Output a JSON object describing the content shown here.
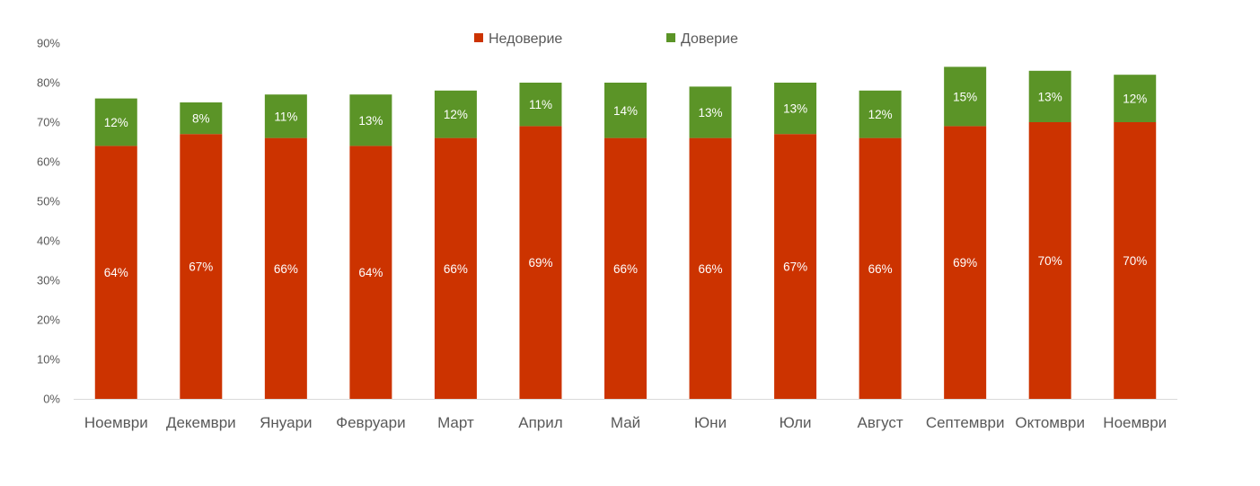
{
  "chart_data": {
    "type": "bar",
    "stacked": true,
    "categories": [
      "Ноември",
      "Декември",
      "Януари",
      "Февруари",
      "Март",
      "Април",
      "Май",
      "Юни",
      "Юли",
      "Август",
      "Септември",
      "Октомври",
      "Ноември"
    ],
    "series": [
      {
        "name": "Недоверие",
        "color": "#cc3300",
        "values": [
          64,
          67,
          66,
          64,
          66,
          69,
          66,
          66,
          67,
          66,
          69,
          70,
          70
        ],
        "labels": [
          "64%",
          "67%",
          "66%",
          "64%",
          "66%",
          "69%",
          "66%",
          "66%",
          "67%",
          "66%",
          "69%",
          "70%",
          "70%"
        ]
      },
      {
        "name": "Доверие",
        "color": "#5b9427",
        "values": [
          12,
          8,
          11,
          13,
          12,
          11,
          14,
          13,
          13,
          12,
          15,
          13,
          12
        ],
        "labels": [
          "12%",
          "8%",
          "11%",
          "13%",
          "12%",
          "11%",
          "14%",
          "13%",
          "13%",
          "12%",
          "15%",
          "13%",
          "12%"
        ]
      }
    ],
    "ylim": [
      0,
      90
    ],
    "yticks": [
      0,
      10,
      20,
      30,
      40,
      50,
      60,
      70,
      80,
      90
    ],
    "ytick_labels": [
      "0%",
      "10%",
      "20%",
      "30%",
      "40%",
      "50%",
      "60%",
      "70%",
      "80%",
      "90%"
    ],
    "grid": false,
    "legend_position": "top-center",
    "title": "",
    "xlabel": "",
    "ylabel": "",
    "axis_color": "#d9d9d9",
    "text_color": "#595959"
  }
}
